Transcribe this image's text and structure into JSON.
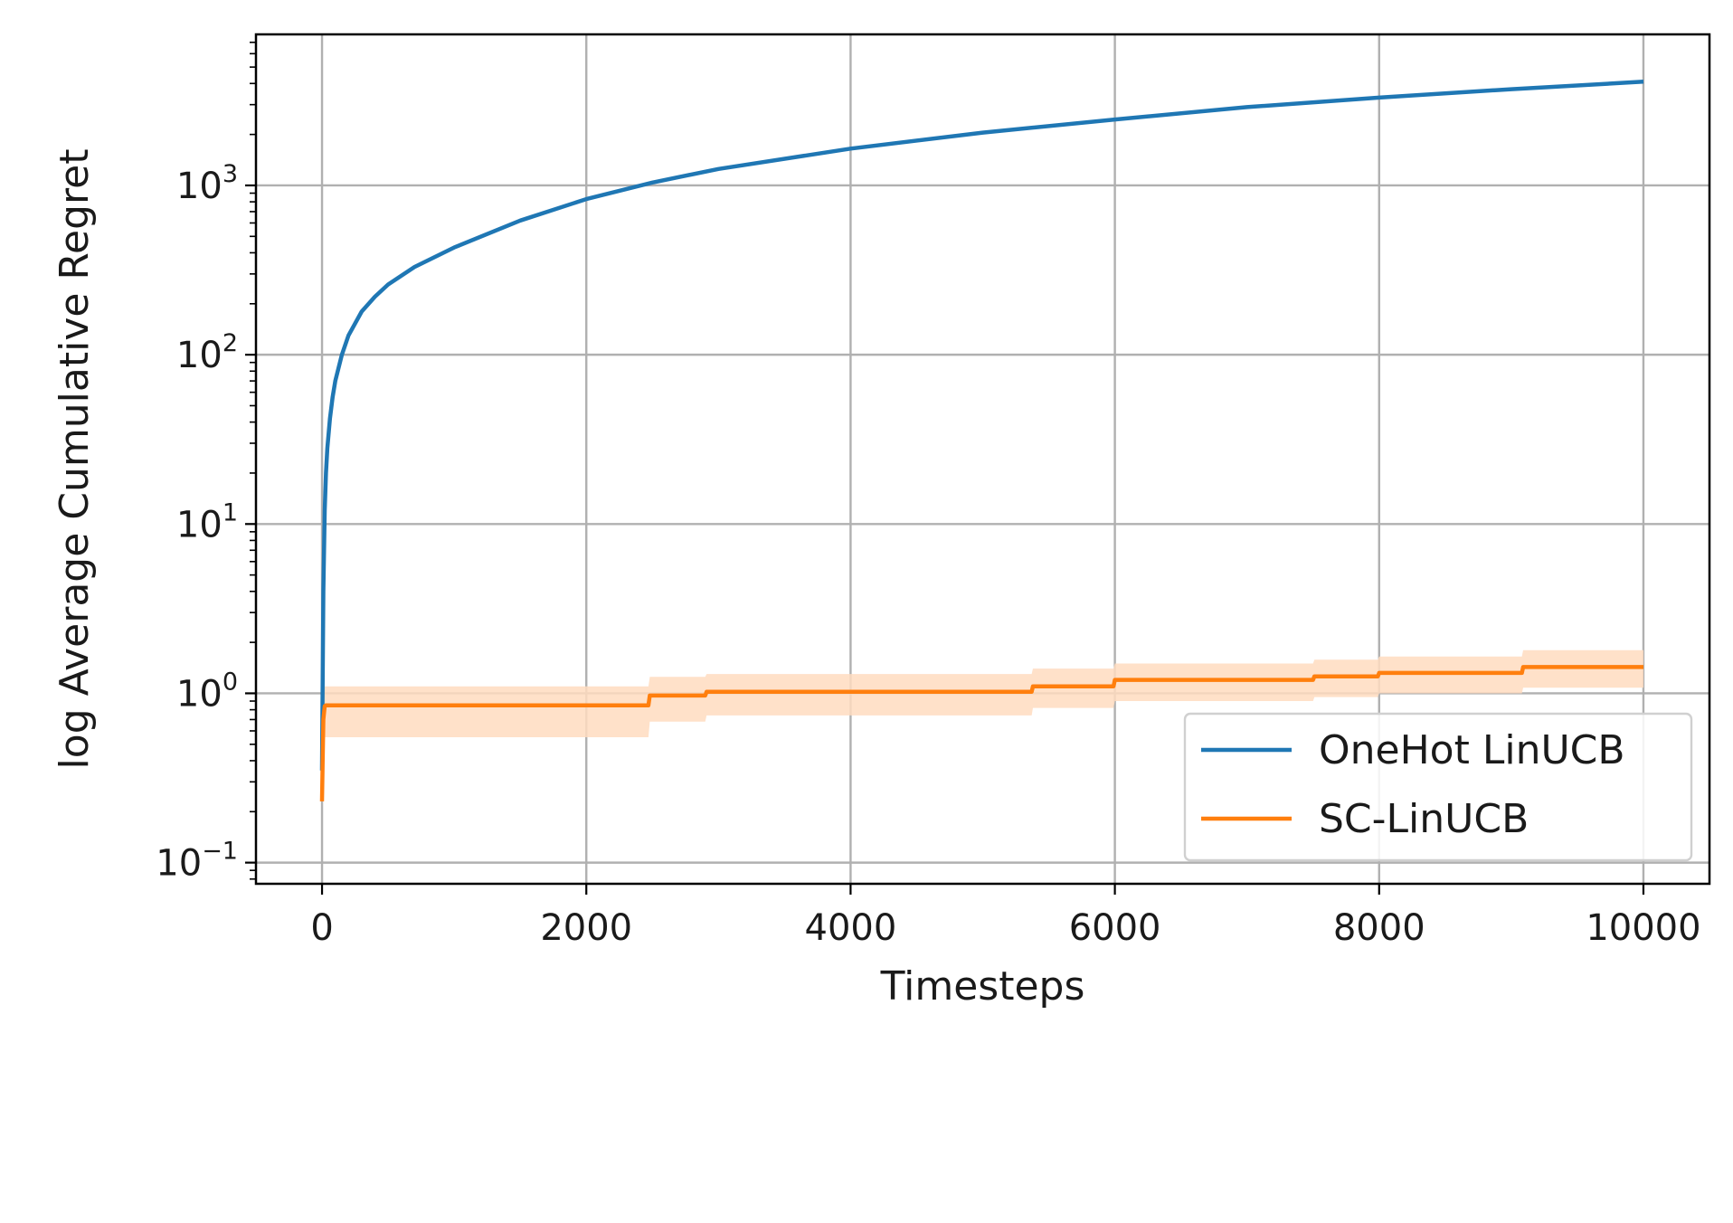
{
  "chart_data": {
    "type": "line",
    "title": "",
    "xlabel": "Timesteps",
    "ylabel": "log Average Cumulative Regret",
    "xlim": [
      -500,
      10500
    ],
    "ylim": [
      0.075,
      7800
    ],
    "yscale": "log",
    "grid": true,
    "legend_position": "lower-right",
    "x_ticks": [
      0,
      2000,
      4000,
      6000,
      8000,
      10000
    ],
    "x_tick_labels": [
      "0",
      "2000",
      "4000",
      "6000",
      "8000",
      "10000"
    ],
    "y_ticks": [
      0.1,
      1,
      10,
      100,
      1000
    ],
    "y_tick_labels": [
      {
        "base": "10",
        "exp": "−1"
      },
      {
        "base": "10",
        "exp": "0"
      },
      {
        "base": "10",
        "exp": "1"
      },
      {
        "base": "10",
        "exp": "2"
      },
      {
        "base": "10",
        "exp": "3"
      }
    ],
    "series": [
      {
        "name": "OneHot LinUCB",
        "color": "#1f77b4",
        "x": [
          0,
          10,
          20,
          30,
          40,
          60,
          80,
          100,
          150,
          200,
          300,
          400,
          500,
          700,
          1000,
          1500,
          2000,
          2500,
          3000,
          4000,
          5000,
          6000,
          7000,
          8000,
          9000,
          10000
        ],
        "y": [
          0.35,
          4,
          12,
          20,
          28,
          42,
          56,
          70,
          100,
          130,
          180,
          220,
          260,
          330,
          430,
          620,
          830,
          1040,
          1250,
          1650,
          2050,
          2450,
          2900,
          3300,
          3700,
          4100
        ]
      },
      {
        "name": "SC-LinUCB",
        "color": "#ff7f0e",
        "band_color": "#ffdcbf",
        "x": [
          0,
          10,
          20,
          30,
          2470,
          2480,
          2900,
          2910,
          5370,
          5380,
          5990,
          6000,
          7500,
          7510,
          7990,
          8000,
          9080,
          9090,
          10000
        ],
        "y": [
          0.23,
          0.7,
          0.84,
          0.85,
          0.85,
          0.97,
          0.97,
          1.02,
          1.02,
          1.1,
          1.1,
          1.2,
          1.2,
          1.26,
          1.26,
          1.32,
          1.32,
          1.43,
          1.43
        ],
        "lower": [
          0.21,
          0.6,
          0.55,
          0.55,
          0.55,
          0.68,
          0.68,
          0.74,
          0.74,
          0.82,
          0.82,
          0.9,
          0.9,
          0.95,
          0.95,
          1.0,
          1.0,
          1.08,
          1.08
        ],
        "upper": [
          0.25,
          0.95,
          1.1,
          1.1,
          1.1,
          1.25,
          1.25,
          1.3,
          1.3,
          1.4,
          1.4,
          1.5,
          1.5,
          1.58,
          1.58,
          1.65,
          1.65,
          1.8,
          1.8
        ]
      }
    ]
  }
}
